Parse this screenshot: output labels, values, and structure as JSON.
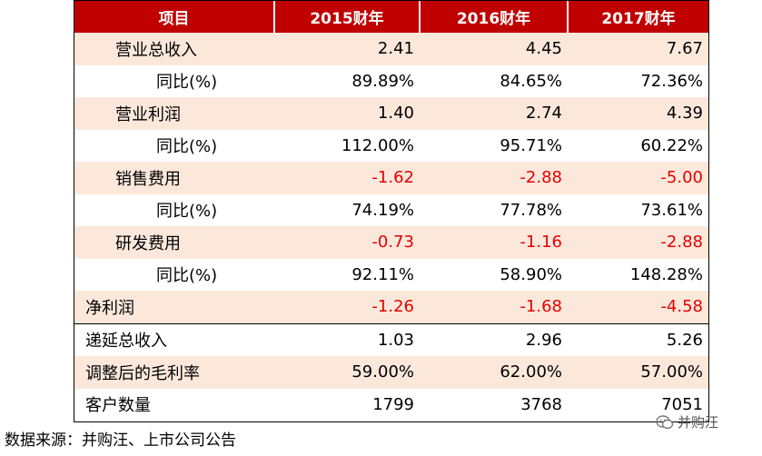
{
  "header": [
    "项目",
    "2015财年",
    "2016财年",
    "2017财年"
  ],
  "rows": [
    {
      "label": "营业总收入",
      "indent": 1,
      "values": [
        "2.41",
        "4.45",
        "7.67"
      ],
      "negative": false,
      "shade": true
    },
    {
      "label": "同比(%)",
      "indent": 2,
      "values": [
        "89.89%",
        "84.65%",
        "72.36%"
      ],
      "negative": false,
      "shade": false
    },
    {
      "label": "营业利润",
      "indent": 1,
      "values": [
        "1.40",
        "2.74",
        "4.39"
      ],
      "negative": false,
      "shade": true
    },
    {
      "label": "同比(%)",
      "indent": 2,
      "values": [
        "112.00%",
        "95.71%",
        "60.22%"
      ],
      "negative": false,
      "shade": false
    },
    {
      "label": "销售费用",
      "indent": 1,
      "values": [
        "-1.62",
        "-2.88",
        "-5.00"
      ],
      "negative": true,
      "shade": true
    },
    {
      "label": "同比(%)",
      "indent": 2,
      "values": [
        "74.19%",
        "77.78%",
        "73.61%"
      ],
      "negative": false,
      "shade": false
    },
    {
      "label": "研发费用",
      "indent": 1,
      "values": [
        "-0.73",
        "-1.16",
        "-2.88"
      ],
      "negative": true,
      "shade": true
    },
    {
      "label": "同比(%)",
      "indent": 2,
      "values": [
        "92.11%",
        "58.90%",
        "148.28%"
      ],
      "negative": false,
      "shade": false
    },
    {
      "label": "净利润",
      "indent": 0,
      "values": [
        "-1.26",
        "-1.68",
        "-4.58"
      ],
      "negative": true,
      "shade": true
    },
    {
      "label": "递延总收入",
      "indent": 0,
      "values": [
        "1.03",
        "2.96",
        "5.26"
      ],
      "negative": false,
      "shade": false
    },
    {
      "label": "调整后的毛利率",
      "indent": 0,
      "values": [
        "59.00%",
        "62.00%",
        "57.00%"
      ],
      "negative": false,
      "shade": true
    },
    {
      "label": "客户数量",
      "indent": 0,
      "values": [
        "1799",
        "3768",
        "7051"
      ],
      "negative": false,
      "shade": false
    }
  ],
  "source_note": "数据来源：并购汪、上市公司公告",
  "logo_text": "并购汪",
  "colors": {
    "header_bg": "#c00000",
    "shade_bg": "#fbe8db",
    "negative": "#e60000"
  }
}
